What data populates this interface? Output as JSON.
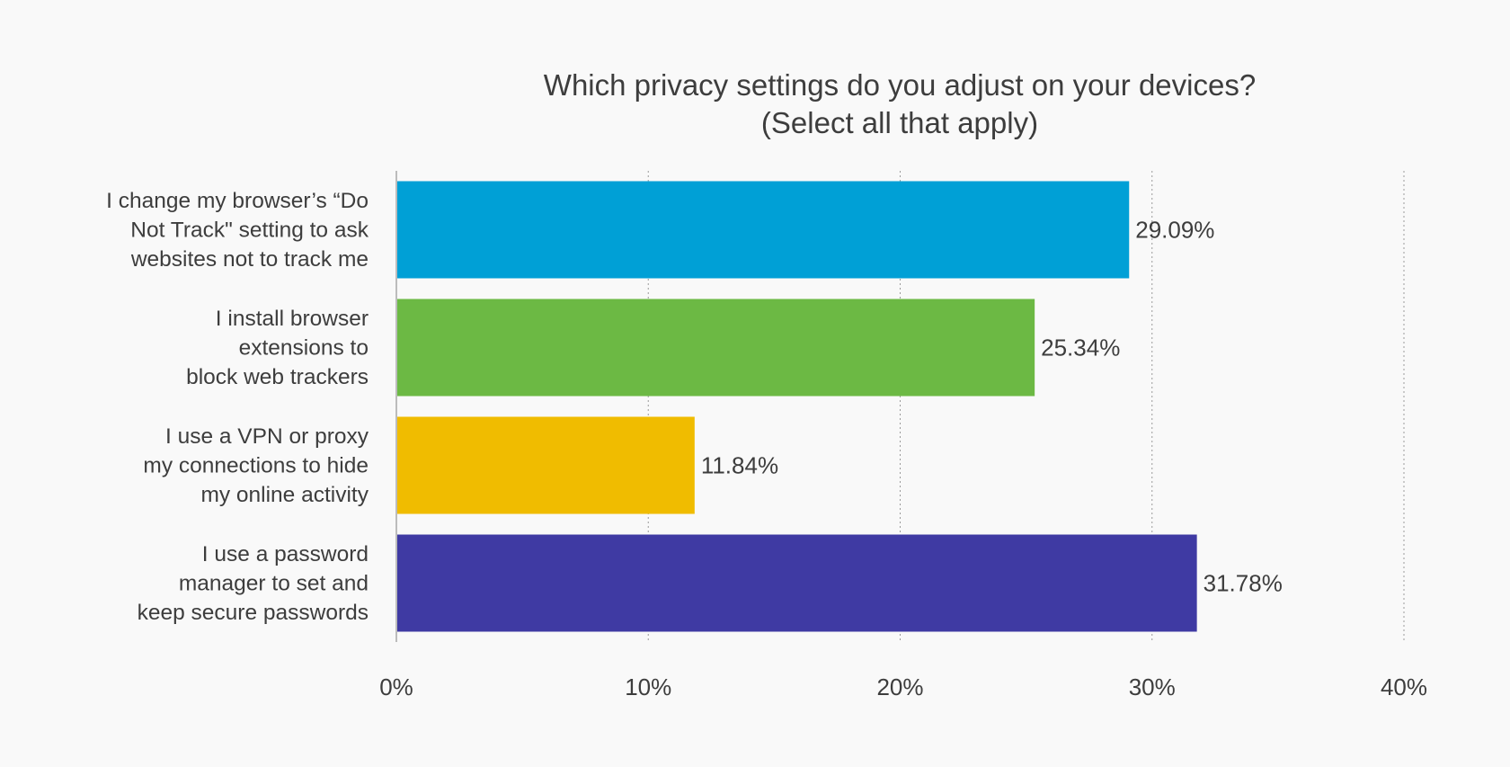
{
  "chart_data": {
    "type": "bar",
    "orientation": "horizontal",
    "title": "Which privacy settings do you adjust on your devices?",
    "subtitle": "(Select all that apply)",
    "categories": [
      [
        "I change my browser’s “Do",
        "Not Track\" setting to ask",
        "websites not to track me"
      ],
      [
        "I install browser",
        "extensions to",
        "block web trackers"
      ],
      [
        "I use a VPN or proxy",
        "my connections to hide",
        "my online activity"
      ],
      [
        "I use a password",
        "manager to set and",
        "keep secure passwords"
      ]
    ],
    "values": [
      29.09,
      25.34,
      11.84,
      31.78
    ],
    "value_labels": [
      "29.09%",
      "25.34%",
      "11.84%",
      "31.78%"
    ],
    "colors": [
      "#00a0d6",
      "#6cb944",
      "#f0bc00",
      "#3f3aa3"
    ],
    "xlim": [
      0,
      40
    ],
    "xticks": [
      0,
      10,
      20,
      30,
      40
    ],
    "xtick_labels": [
      "0%",
      "10%",
      "20%",
      "30%",
      "40%"
    ],
    "grid": "vertical-dotted",
    "legend": "none"
  }
}
